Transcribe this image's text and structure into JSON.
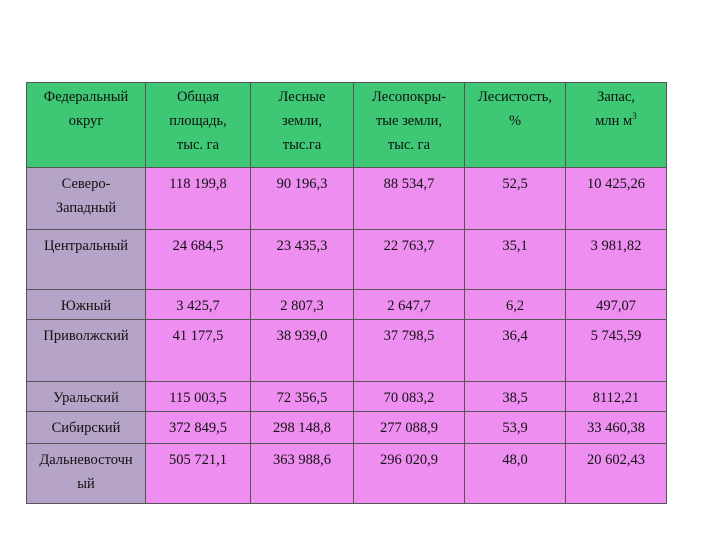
{
  "table": {
    "headers": [
      [
        "Федеральный",
        "округ"
      ],
      [
        "Общая",
        "площадь,",
        "тыс. га"
      ],
      [
        "Лесные",
        "земли,",
        "тыс.га"
      ],
      [
        "Лесопокры-",
        "тые земли,",
        "тыс. га"
      ],
      [
        "Лесистость,",
        "%"
      ],
      [
        "Запас,",
        "млн м",
        "3"
      ]
    ],
    "rows": [
      {
        "name": [
          "Северо-",
          "Западный"
        ],
        "cells": [
          "118 199,8",
          "90 196,3",
          "88 534,7",
          "52,5",
          "10 425,26"
        ]
      },
      {
        "name": [
          "Центральный"
        ],
        "cells": [
          "24 684,5",
          "23 435,3",
          "22 763,7",
          "35,1",
          "3 981,82"
        ]
      },
      {
        "name": [
          "Южный"
        ],
        "cells": [
          "3 425,7",
          "2 807,3",
          "2 647,7",
          "6,2",
          "497,07"
        ]
      },
      {
        "name": [
          "Приволжский"
        ],
        "cells": [
          "41 177,5",
          "38 939,0",
          "37 798,5",
          "36,4",
          "5 745,59"
        ]
      },
      {
        "name": [
          "Уральский"
        ],
        "cells": [
          "115 003,5",
          "72 356,5",
          "70 083,2",
          "38,5",
          "8112,21"
        ]
      },
      {
        "name": [
          "Сибирский"
        ],
        "cells": [
          "372 849,5",
          "298 148,8",
          "277 088,9",
          "53,9",
          "33 460,38"
        ]
      },
      {
        "name": [
          "Дальневосточн",
          "ый"
        ],
        "cells": [
          "505 721,1",
          "363 988,6",
          "296 020,9",
          "48,0",
          "20 602,43"
        ]
      }
    ],
    "colors": {
      "header_bg": "#3ec774",
      "row_bg": "#ee8ef0",
      "rowhead_bg": "#b6a3c8"
    }
  }
}
